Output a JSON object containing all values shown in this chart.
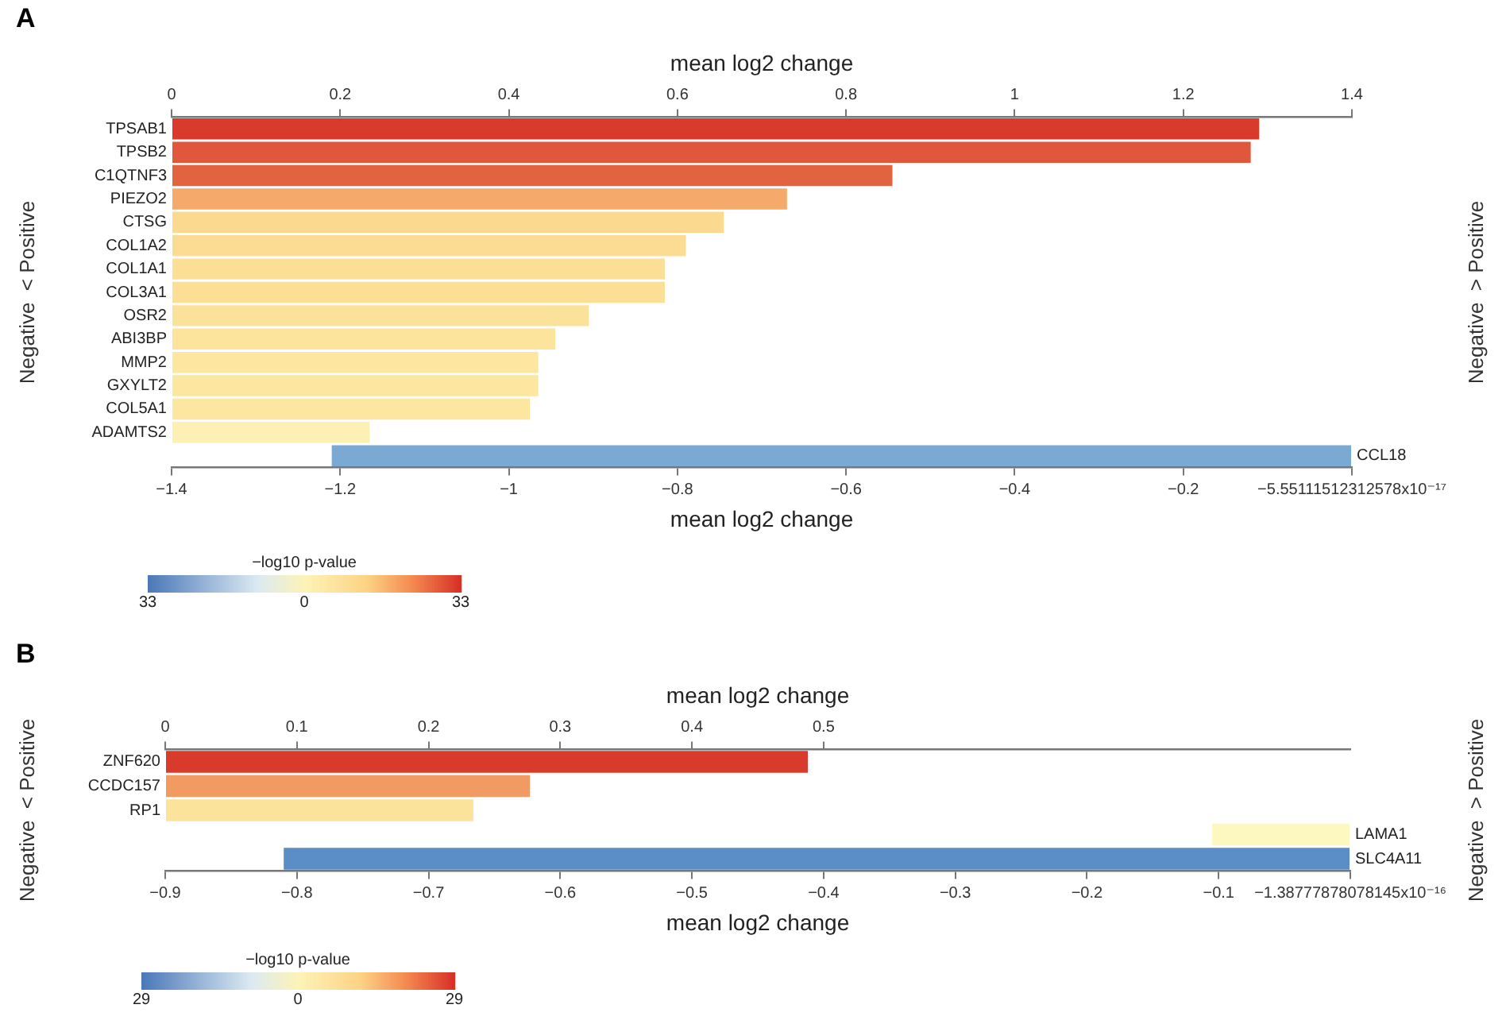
{
  "chart_data": [
    {
      "type": "bar",
      "orientation": "horizontal",
      "title": "A",
      "x2label": "mean log2 change",
      "xlabel": "mean log2 change",
      "ylabel": "Negative  < Positive",
      "y2label": "Negative  > Positive",
      "clabel": "−log10 p-value",
      "clim": [
        -33,
        33
      ],
      "cticks": [
        {
          "value": -33,
          "label": "33"
        },
        0,
        33
      ],
      "categories": [
        "TPSAB1",
        "TPSB2",
        "C1QTNF3",
        "PIEZO2",
        "CTSG",
        "COL1A2",
        "COL1A1",
        "COL3A1",
        "OSR2",
        "ABI3BP",
        "MMP2",
        "GXYLT2",
        "COL5A1",
        "ADAMTS2",
        "CCL18"
      ],
      "series": [
        {
          "axis": "x2",
          "values": [
            1.29,
            1.28,
            0.855,
            0.73,
            0.655,
            0.61,
            0.585,
            0.585,
            0.495,
            0.455,
            0.435,
            0.435,
            0.425,
            0.235,
            null
          ],
          "colors": [
            "#d83a2c",
            "#e0573b",
            "#e2633f",
            "#f5a96b",
            "#fbd98e",
            "#fbdc92",
            "#fbdf95",
            "#fbdf95",
            "#fbe29a",
            "#fce49c",
            "#fce6a0",
            "#fce6a0",
            "#fce6a0",
            "#fdf0b4",
            "#ffffff"
          ]
        },
        {
          "values": [
            null,
            null,
            null,
            null,
            null,
            null,
            null,
            null,
            null,
            null,
            null,
            null,
            null,
            null,
            -1.21
          ],
          "colors": [
            "#ffffff",
            "#ffffff",
            "#ffffff",
            "#ffffff",
            "#ffffff",
            "#ffffff",
            "#ffffff",
            "#ffffff",
            "#ffffff",
            "#ffffff",
            "#ffffff",
            "#ffffff",
            "#ffffff",
            "#ffffff",
            "#7aa9d3"
          ]
        }
      ],
      "x2lim": [
        0,
        1.4
      ],
      "x2ticks": [
        0,
        0.2,
        0.4,
        0.6,
        0.8,
        1,
        1.2,
        1.4
      ],
      "xlim": [
        -1.4,
        0
      ],
      "xticks": [
        -1.4,
        -1.2,
        -1,
        -0.8,
        -0.6,
        -0.4,
        -0.2,
        {
          "value": 0,
          "label": "−5.55111512312578x10⁻¹⁷"
        }
      ]
    },
    {
      "type": "bar",
      "orientation": "horizontal",
      "title": "B",
      "x2label": "mean log2 change",
      "xlabel": "mean log2 change",
      "ylabel": "Negative  < Positive",
      "y2label": "Negative  > Positive",
      "clabel": "−log10 p-value",
      "clim": [
        -29,
        29
      ],
      "cticks": [
        {
          "value": -29,
          "label": "29"
        },
        0,
        29
      ],
      "categories": [
        "ZNF620",
        "CCDC157",
        "RP1",
        "LAMA1",
        "SLC4A11"
      ],
      "series": [
        {
          "axis": "x2",
          "values": [
            0.488,
            0.277,
            0.234,
            null,
            null
          ],
          "colors": [
            "#d83a2c",
            "#f19a62",
            "#fce39c",
            "#ffffff",
            "#ffffff"
          ]
        },
        {
          "values": [
            null,
            null,
            null,
            -0.105,
            -0.81
          ],
          "colors": [
            "#ffffff",
            "#ffffff",
            "#ffffff",
            "#fdf7c0",
            "#5b8ec6"
          ]
        }
      ],
      "x2lim": [
        0,
        0.9
      ],
      "x2ticks": [
        0,
        0.1,
        0.2,
        0.3,
        0.4,
        0.5
      ],
      "xlim": [
        -0.9,
        0
      ],
      "xticks": [
        -0.9,
        -0.8,
        -0.7,
        -0.6,
        -0.5,
        -0.4,
        -0.3,
        -0.2,
        -0.1,
        {
          "value": 0,
          "label": "−1.38777878078145x10⁻¹⁶"
        }
      ]
    }
  ]
}
